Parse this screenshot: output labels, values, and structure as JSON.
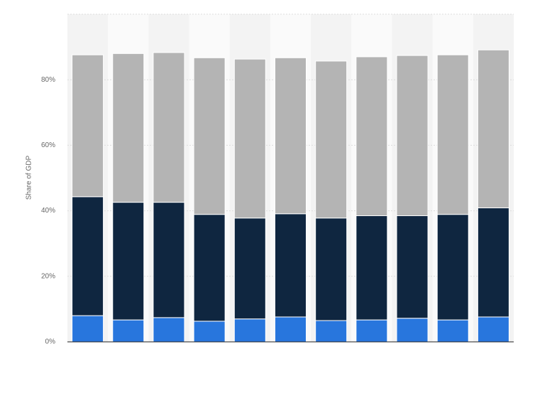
{
  "chart_data": {
    "type": "stacked-bar",
    "y_label": "Share of GDP",
    "categories": [
      null,
      null,
      null,
      null,
      null,
      null,
      null,
      null,
      null,
      null,
      null
    ],
    "series": [
      {
        "color": "#2876dd",
        "values": [
          8.0,
          6.7,
          7.4,
          6.3,
          7.0,
          7.6,
          6.5,
          6.7,
          7.2,
          6.7,
          7.6
        ]
      },
      {
        "color": "#0f2640",
        "values": [
          36.3,
          35.9,
          35.2,
          32.6,
          30.8,
          31.5,
          31.3,
          31.8,
          31.3,
          32.2,
          33.3
        ]
      },
      {
        "color": "#b4b4b4",
        "values": [
          43.3,
          45.4,
          45.7,
          47.8,
          48.5,
          47.6,
          47.9,
          48.5,
          48.9,
          48.7,
          48.2
        ]
      }
    ],
    "ylim": [
      0,
      100
    ],
    "yticks": [
      {
        "value": 0,
        "label": "0%"
      },
      {
        "value": 20,
        "label": "20%"
      },
      {
        "value": 40,
        "label": "40%"
      },
      {
        "value": 60,
        "label": "60%"
      },
      {
        "value": 80,
        "label": "80%"
      }
    ],
    "grid": true
  }
}
